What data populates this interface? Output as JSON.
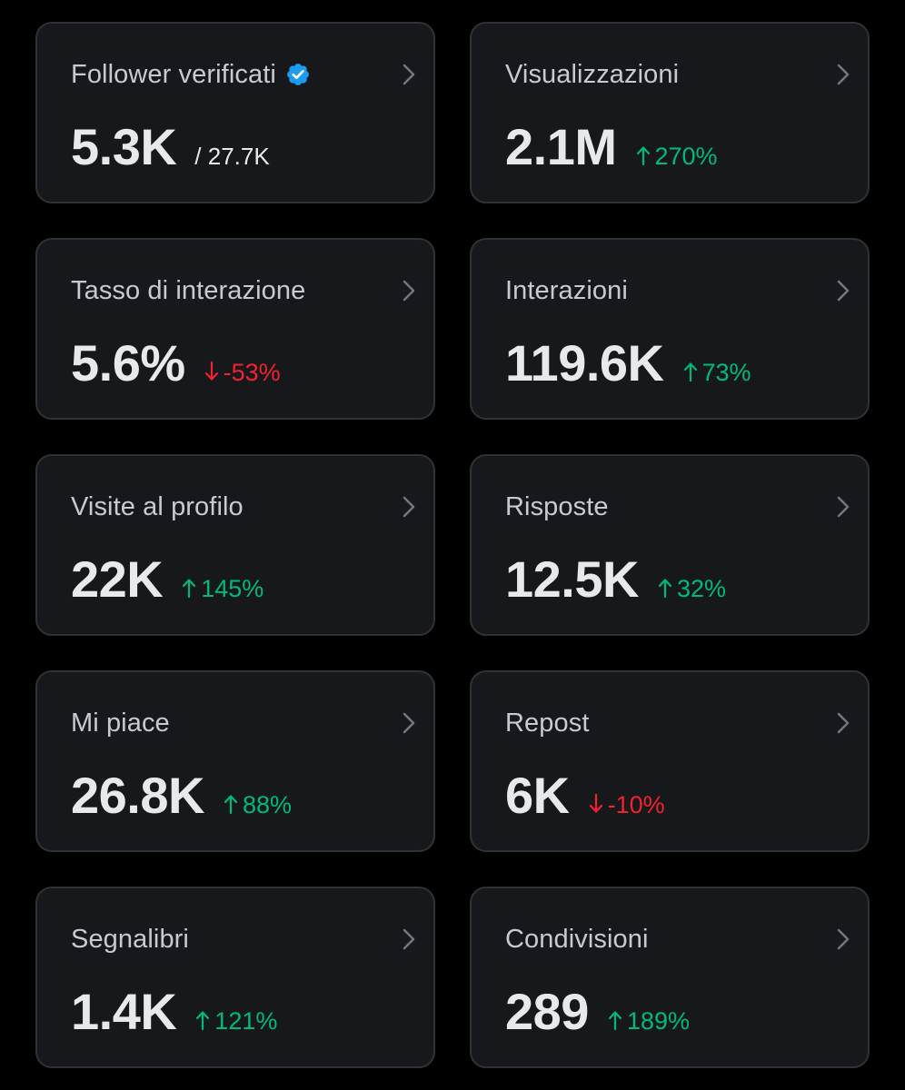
{
  "colors": {
    "background": "#000000",
    "card_background": "#16181c",
    "card_border": "#2f3336",
    "title_text": "#c7cbd0",
    "value_text": "#e7e9ea",
    "positive": "#00ba7c",
    "negative": "#f4212e",
    "verified_badge": "#1d9bf0"
  },
  "cards": [
    {
      "title": "Follower verificati",
      "value": "5.3K",
      "sub": "/ 27.7K",
      "icon": "verified-badge-icon",
      "chevron": "chevron-right-icon"
    },
    {
      "title": "Visualizzazioni",
      "value": "2.1M",
      "delta": "270%",
      "trend": "up",
      "chevron": "chevron-right-icon"
    },
    {
      "title": "Tasso di interazione",
      "value": "5.6%",
      "delta": "-53%",
      "trend": "down",
      "chevron": "chevron-right-icon"
    },
    {
      "title": "Interazioni",
      "value": "119.6K",
      "delta": "73%",
      "trend": "up",
      "chevron": "chevron-right-icon"
    },
    {
      "title": "Visite al profilo",
      "value": "22K",
      "delta": "145%",
      "trend": "up",
      "chevron": "chevron-right-icon"
    },
    {
      "title": "Risposte",
      "value": "12.5K",
      "delta": "32%",
      "trend": "up",
      "chevron": "chevron-right-icon"
    },
    {
      "title": "Mi piace",
      "value": "26.8K",
      "delta": "88%",
      "trend": "up",
      "chevron": "chevron-right-icon"
    },
    {
      "title": "Repost",
      "value": "6K",
      "delta": "-10%",
      "trend": "down",
      "chevron": "chevron-right-icon"
    },
    {
      "title": "Segnalibri",
      "value": "1.4K",
      "delta": "121%",
      "trend": "up",
      "chevron": "chevron-right-icon"
    },
    {
      "title": "Condivisioni",
      "value": "289",
      "delta": "189%",
      "trend": "up",
      "chevron": "chevron-right-icon"
    }
  ]
}
